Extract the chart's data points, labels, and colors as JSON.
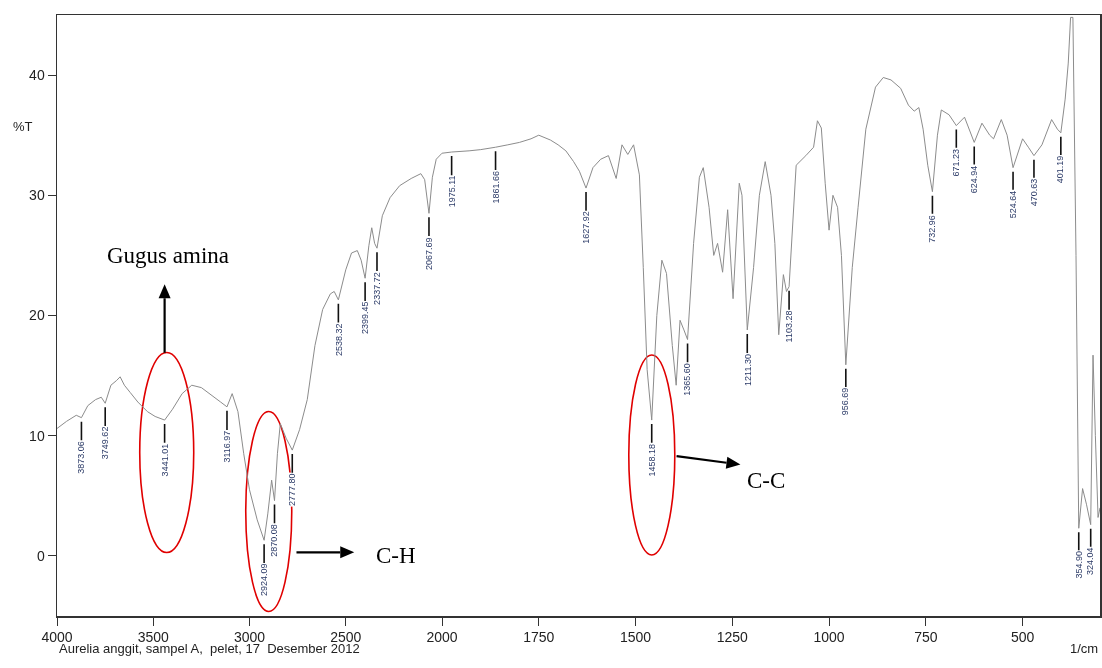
{
  "chart_data": [
    {
      "type": "line",
      "ylabel": "%T",
      "xlim": [
        4000,
        2000
      ],
      "xticks": [
        4000,
        3500,
        3000,
        2500,
        2000
      ],
      "ylim": [
        -5,
        45
      ],
      "yticks": [
        0,
        10,
        20,
        30,
        40
      ],
      "series": [
        {
          "color": "#8c8c8c",
          "x": [
            4000,
            3950,
            3900,
            3873.06,
            3840,
            3800,
            3770,
            3749.62,
            3720,
            3690,
            3672,
            3650,
            3620,
            3580,
            3530,
            3490,
            3441.01,
            3400,
            3350,
            3300,
            3250,
            3200,
            3150,
            3116.97,
            3090,
            3060,
            3030,
            3000,
            2960,
            2924.09,
            2905,
            2885,
            2870.08,
            2855,
            2840,
            2810,
            2777.8,
            2740,
            2700,
            2660,
            2620,
            2580,
            2560,
            2538.32,
            2500,
            2470,
            2440,
            2420,
            2399.45,
            2380,
            2365,
            2350,
            2337.72,
            2310,
            2270,
            2220,
            2160,
            2110,
            2090,
            2067.69,
            2050,
            2030,
            2000
          ],
          "values": [
            10.6,
            11.2,
            11.7,
            11.5,
            12.5,
            13.0,
            13.2,
            12.7,
            14.2,
            14.6,
            14.9,
            14.2,
            13.6,
            12.8,
            12.0,
            11.6,
            11.3,
            12.2,
            13.5,
            14.2,
            14.0,
            13.4,
            12.8,
            12.4,
            13.5,
            12.0,
            8.5,
            5.5,
            3.0,
            1.3,
            3.5,
            6.3,
            4.6,
            8.5,
            11.0,
            9.8,
            8.8,
            10.5,
            13.0,
            17.5,
            20.5,
            21.8,
            22.0,
            21.3,
            23.8,
            25.2,
            25.4,
            24.6,
            23.1,
            25.8,
            27.3,
            26.0,
            25.6,
            28.3,
            29.8,
            30.8,
            31.4,
            31.8,
            31.3,
            28.5,
            31.5,
            33.0,
            33.5
          ]
        }
      ],
      "annotations": [
        "Gugus amina",
        "C-H",
        "Aurelia anggit, sampel A,  pelet, 17  Desember 2012",
        {
          "text": "3873.06",
          "x": 3873.06,
          "y": 11.5
        },
        {
          "text": "3749.62",
          "x": 3749.62,
          "y": 12.7
        },
        {
          "text": "3441.01",
          "x": 3441.01,
          "y": 11.3
        },
        {
          "text": "3116.97",
          "x": 3116.97,
          "y": 12.4
        },
        {
          "text": "2924.09",
          "x": 2924.09,
          "y": 1.3
        },
        {
          "text": "2870.08",
          "x": 2870.08,
          "y": 4.6
        },
        {
          "text": "2777.80",
          "x": 2777.8,
          "y": 8.8
        },
        {
          "text": "2538.32",
          "x": 2538.32,
          "y": 21.3
        },
        {
          "text": "2399.45",
          "x": 2399.45,
          "y": 23.1
        },
        {
          "text": "2337.72",
          "x": 2337.72,
          "y": 25.6
        },
        {
          "text": "2067.69",
          "x": 2067.69,
          "y": 28.5
        }
      ]
    },
    {
      "type": "line",
      "xlabel": "1/cm",
      "tick_labels": "x",
      "xlim": [
        2000,
        300
      ],
      "xticks": [
        1750,
        1500,
        1250,
        1000,
        750,
        500
      ],
      "ylim": [
        -5,
        45
      ],
      "yticks": [
        0,
        10,
        20,
        30,
        40
      ],
      "series": [
        {
          "color": "#8c8c8c",
          "x": [
            2000,
            1975.11,
            1930,
            1900,
            1861.66,
            1830,
            1800,
            1770,
            1750,
            1720,
            1700,
            1680,
            1660,
            1645,
            1627.92,
            1610,
            1590,
            1570,
            1550,
            1535,
            1520,
            1505,
            1490,
            1480,
            1470,
            1458.18,
            1445,
            1432,
            1420,
            1405,
            1395,
            1385,
            1375,
            1365.6,
            1350,
            1335,
            1325,
            1310,
            1298,
            1288,
            1275,
            1262,
            1248,
            1232,
            1225,
            1211.3,
            1195,
            1180,
            1165,
            1150,
            1140,
            1130,
            1118,
            1110,
            1103.28,
            1085,
            1060,
            1040,
            1030,
            1020,
            1010,
            1000,
            990,
            978,
            968,
            956.69,
            940,
            925,
            905,
            880,
            860,
            840,
            815,
            795,
            780,
            768,
            757,
            745,
            732.96,
            720,
            710,
            690,
            671.23,
            650,
            624.94,
            605,
            585,
            575,
            555,
            540,
            524.64,
            500,
            485,
            470.63,
            450,
            425,
            410,
            401.19,
            390,
            382,
            376,
            370,
            362,
            354.9,
            345,
            335,
            324.04,
            318,
            312,
            305,
            300
          ],
          "values": [
            33.5,
            33.6,
            33.7,
            33.8,
            34.0,
            34.2,
            34.4,
            34.7,
            35.0,
            34.6,
            34.2,
            33.7,
            32.8,
            32.0,
            30.6,
            32.3,
            33.0,
            33.3,
            31.4,
            34.2,
            33.4,
            34.2,
            31.7,
            24.0,
            15.5,
            11.3,
            20.0,
            24.6,
            23.5,
            17.5,
            14.2,
            19.6,
            18.8,
            18.0,
            26.0,
            31.5,
            32.3,
            29.0,
            25.0,
            26.0,
            23.6,
            28.8,
            21.4,
            31.0,
            30.0,
            18.8,
            24.0,
            30.0,
            32.8,
            30.0,
            26.0,
            18.4,
            23.4,
            22.0,
            22.4,
            32.5,
            33.3,
            34.0,
            36.2,
            35.6,
            31.0,
            27.1,
            30.0,
            29.0,
            25.0,
            15.9,
            24.0,
            29.0,
            35.5,
            39.0,
            39.8,
            39.6,
            38.9,
            37.5,
            37.0,
            37.3,
            35.5,
            32.5,
            30.3,
            35.0,
            37.1,
            36.7,
            35.8,
            36.5,
            34.4,
            36.0,
            35.0,
            34.7,
            36.3,
            35.0,
            32.3,
            34.7,
            34.0,
            33.3,
            34.2,
            36.3,
            35.5,
            35.2,
            38.0,
            41.0,
            44.8,
            44.8,
            25.0,
            2.3,
            5.6,
            4.3,
            2.6,
            16.7,
            10.0,
            3.2,
            4.0
          ]
        }
      ],
      "annotations": [
        "C-C",
        {
          "text": "1975.11",
          "x": 1975.11,
          "y": 33.6
        },
        {
          "text": "1861.66",
          "x": 1861.66,
          "y": 34.0
        },
        {
          "text": "1627.92",
          "x": 1627.92,
          "y": 30.6
        },
        {
          "text": "1458.18",
          "x": 1458.18,
          "y": 11.3
        },
        {
          "text": "1365.60",
          "x": 1365.6,
          "y": 18.0
        },
        {
          "text": "1211.30",
          "x": 1211.3,
          "y": 18.8
        },
        {
          "text": "1103.28",
          "x": 1103.28,
          "y": 22.4
        },
        {
          "text": "956.69",
          "x": 956.69,
          "y": 15.9
        },
        {
          "text": "732.96",
          "x": 732.96,
          "y": 30.3
        },
        {
          "text": "671.23",
          "x": 671.23,
          "y": 35.8
        },
        {
          "text": "624.94",
          "x": 624.94,
          "y": 34.4
        },
        {
          "text": "524.64",
          "x": 524.64,
          "y": 32.3
        },
        {
          "text": "470.63",
          "x": 470.63,
          "y": 33.3
        },
        {
          "text": "401.19",
          "x": 401.19,
          "y": 35.2
        },
        {
          "text": "354.90",
          "x": 354.9,
          "y": 2.3
        },
        {
          "text": "324.04",
          "x": 324.04,
          "y": 2.6
        }
      ]
    }
  ]
}
